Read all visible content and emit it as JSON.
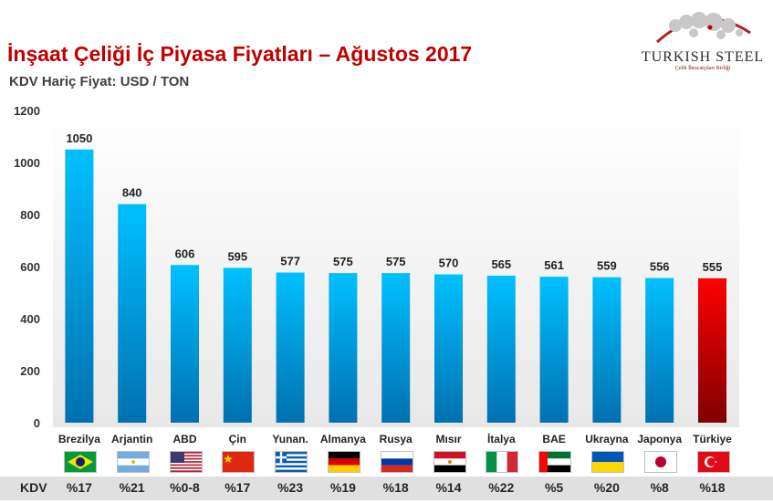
{
  "header": {
    "title": "İnşaat Çeliği İç Piyasa Fiyatları – Ağustos 2017",
    "subtitle": "KDV Hariç Fiyat: USD / TON"
  },
  "logo": {
    "name": "TURKISH STEEL",
    "tagline": "Çelik İhracatçıları Birliği"
  },
  "chart_data": {
    "type": "bar",
    "categories": [
      "Brezilya",
      "Arjantin",
      "ABD",
      "Çin",
      "Yunan.",
      "Almanya",
      "Rusya",
      "Mısır",
      "İtalya",
      "BAE",
      "Ukrayna",
      "Japonya",
      "Türkiye"
    ],
    "values": [
      1050,
      840,
      606,
      595,
      577,
      575,
      575,
      570,
      565,
      561,
      559,
      556,
      555
    ],
    "ylim": [
      0,
      1200
    ],
    "yticks": [
      0,
      200,
      400,
      600,
      800,
      1000,
      1200
    ],
    "grid": false,
    "colors": {
      "default": "#00b0f0",
      "highlight": "#c00000",
      "highlight_category": "Türkiye"
    }
  },
  "kdv": {
    "label": "KDV",
    "values": [
      "%17",
      "%21",
      "%0-8",
      "%17",
      "%23",
      "%19",
      "%18",
      "%14",
      "%22",
      "%5",
      "%20",
      "%8",
      "%18"
    ]
  },
  "flags": [
    "brazil-flag",
    "argentina-flag",
    "usa-flag",
    "china-flag",
    "greece-flag",
    "germany-flag",
    "russia-flag",
    "egypt-flag",
    "italy-flag",
    "uae-flag",
    "ukraine-flag",
    "japan-flag",
    "turkey-flag"
  ]
}
